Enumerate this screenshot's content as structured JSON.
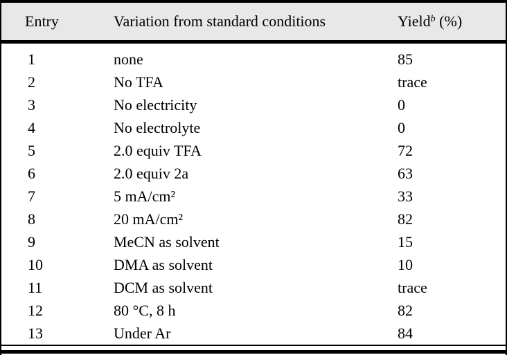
{
  "table": {
    "headers": {
      "entry": "Entry",
      "variation": "Variation from standard conditions",
      "yield_label": "Yield",
      "yield_footnote_marker": "b",
      "yield_unit": " (%)"
    },
    "rows": [
      {
        "entry": "1",
        "variation": "none",
        "yield": "85"
      },
      {
        "entry": "2",
        "variation": "No TFA",
        "yield": "trace"
      },
      {
        "entry": "3",
        "variation": "No electricity",
        "yield": "0"
      },
      {
        "entry": "4",
        "variation": "No electrolyte",
        "yield": "0"
      },
      {
        "entry": "5",
        "variation": "2.0 equiv TFA",
        "yield": "72"
      },
      {
        "entry": "6",
        "variation": "2.0 equiv 2a",
        "yield": "63"
      },
      {
        "entry": "7",
        "variation": "5 mA/cm²",
        "yield": "33"
      },
      {
        "entry": "8",
        "variation": "20 mA/cm²",
        "yield": "82"
      },
      {
        "entry": "9",
        "variation": "MeCN as solvent",
        "yield": "15"
      },
      {
        "entry": "10",
        "variation": "DMA as solvent",
        "yield": "10"
      },
      {
        "entry": "11",
        "variation": "DCM as solvent",
        "yield": "trace"
      },
      {
        "entry": "12",
        "variation": "80 °C, 8 h",
        "yield": "82"
      },
      {
        "entry": "13",
        "variation": "Under Ar",
        "yield": "84"
      }
    ],
    "colors": {
      "header_background": "#e8e8e8",
      "rule": "#000000",
      "text": "#000000",
      "background": "#ffffff"
    }
  }
}
